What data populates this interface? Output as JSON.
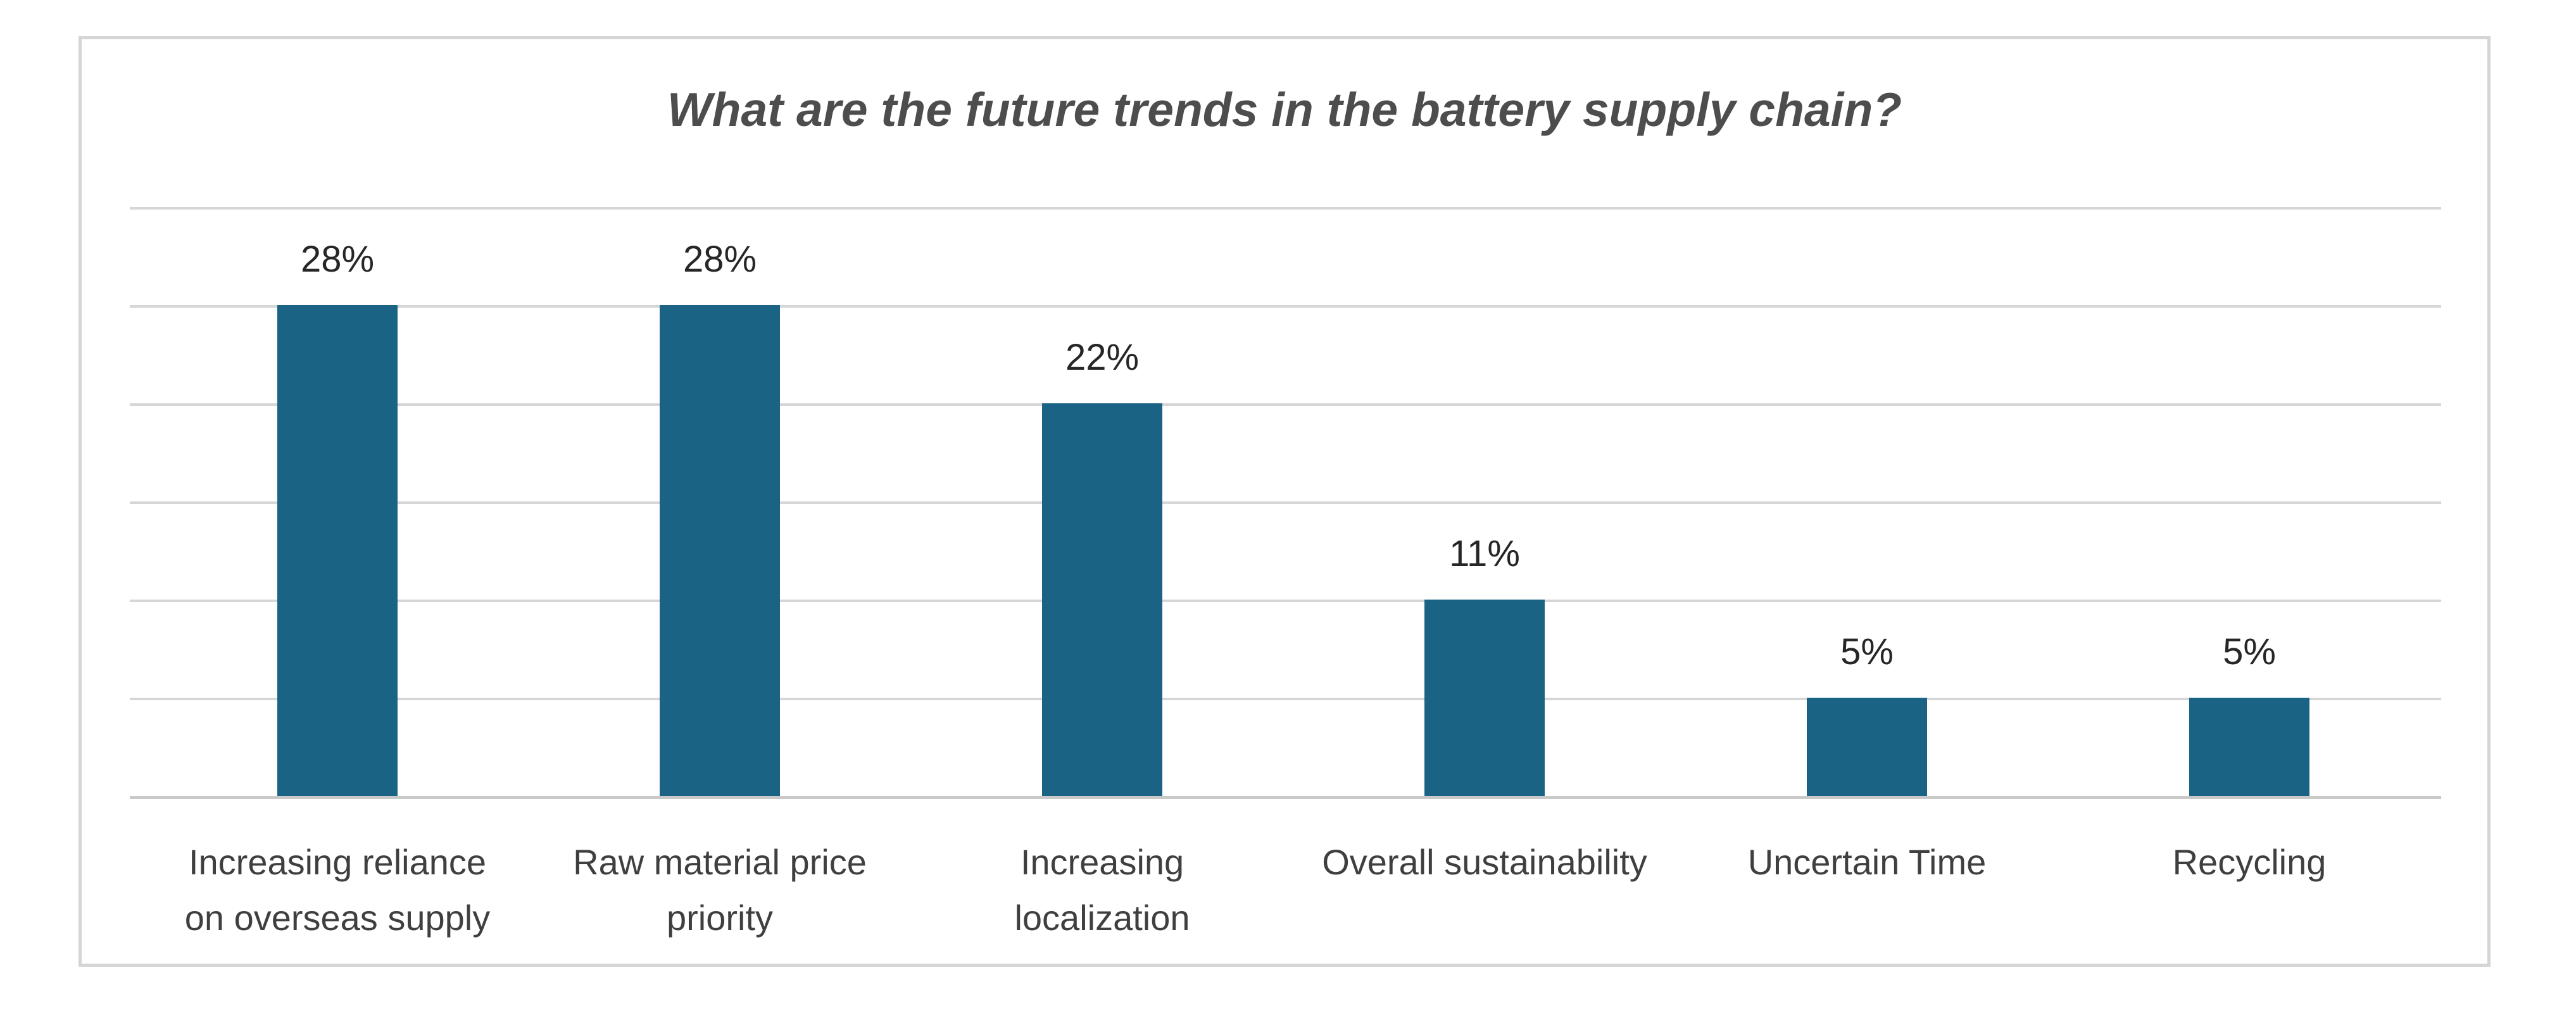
{
  "chart_data": {
    "type": "bar",
    "title": "What are the future trends in the battery supply chain?",
    "categories": [
      "Increasing reliance on overseas supply",
      "Raw material price priority",
      "Increasing localization",
      "Overall sustainability",
      "Uncertain Time",
      "Recycling"
    ],
    "category_lines": [
      [
        "Increasing reliance",
        "on overseas supply"
      ],
      [
        "Raw material price",
        "priority"
      ],
      [
        "Increasing",
        "localization"
      ],
      [
        "Overall sustainability"
      ],
      [
        "Uncertain Time"
      ],
      [
        "Recycling"
      ]
    ],
    "values": [
      28,
      28,
      22,
      11,
      5,
      5
    ],
    "data_labels": [
      "28%",
      "28%",
      "22%",
      "11%",
      "5%",
      "5%"
    ],
    "unit": "percent",
    "xlabel": "",
    "ylabel": "",
    "ylim": [
      0,
      33.5
    ],
    "y_axis_labels_visible": false,
    "grid_rows": 6,
    "bar_heights_grid_units": [
      5,
      5,
      4,
      2,
      1,
      1
    ],
    "legend_position": "none",
    "colors": {
      "bar": "#1A6384",
      "gridline": "#D6D6D6",
      "axis_line": "#C9C9C9",
      "frame_border": "#D5D5D5",
      "title_text": "#4D4D4D",
      "category_text": "#3F3F3F",
      "data_label_text": "#262626",
      "background": "#FFFFFF"
    }
  }
}
